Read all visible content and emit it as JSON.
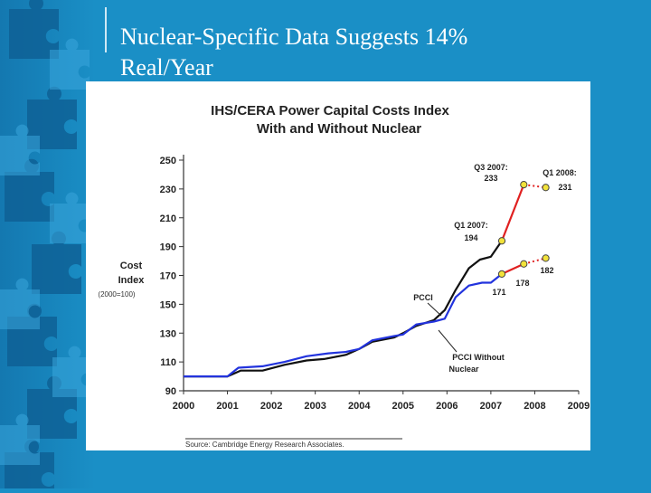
{
  "slide": {
    "title_line1": "Nuclear-Specific Data Suggests 14%",
    "title_line2": "Real/Year"
  },
  "chart_data": {
    "type": "line",
    "title": "IHS/CERA Power Capital Costs Index",
    "subtitle": "With and Without Nuclear",
    "ylabel_line1": "Cost",
    "ylabel_line2": "Index",
    "ylabel_note": "(2000=100)",
    "xlim": [
      2000,
      2009
    ],
    "ylim": [
      90,
      250
    ],
    "xticks": [
      "2000",
      "2001",
      "2002",
      "2003",
      "2004",
      "2005",
      "2006",
      "2007",
      "2008",
      "2009"
    ],
    "yticks": [
      "90",
      "110",
      "130",
      "150",
      "170",
      "190",
      "210",
      "230",
      "250"
    ],
    "series": [
      {
        "name": "PCCI",
        "color": "#111111",
        "points": [
          [
            2000,
            100
          ],
          [
            2001,
            100
          ],
          [
            2001.3,
            104
          ],
          [
            2001.8,
            104
          ],
          [
            2002.3,
            108
          ],
          [
            2002.8,
            111
          ],
          [
            2003.2,
            112
          ],
          [
            2003.7,
            115
          ],
          [
            2004,
            119
          ],
          [
            2004.3,
            124
          ],
          [
            2004.8,
            127
          ],
          [
            2005,
            130
          ],
          [
            2005.3,
            135
          ],
          [
            2005.7,
            139
          ],
          [
            2005.95,
            146
          ],
          [
            2006.2,
            160
          ],
          [
            2006.5,
            175
          ],
          [
            2006.75,
            181
          ],
          [
            2007,
            183
          ],
          [
            2007.25,
            194
          ]
        ]
      },
      {
        "name": "PCCI Without Nuclear",
        "color": "#2233dd",
        "points": [
          [
            2000,
            100
          ],
          [
            2001,
            100
          ],
          [
            2001.25,
            106
          ],
          [
            2001.8,
            107
          ],
          [
            2002.3,
            110
          ],
          [
            2002.8,
            114
          ],
          [
            2003.3,
            116
          ],
          [
            2003.7,
            117
          ],
          [
            2004,
            119
          ],
          [
            2004.3,
            125
          ],
          [
            2004.8,
            128
          ],
          [
            2005,
            129
          ],
          [
            2005.3,
            136
          ],
          [
            2005.7,
            138
          ],
          [
            2005.95,
            140
          ],
          [
            2006.2,
            155
          ],
          [
            2006.5,
            163
          ],
          [
            2006.8,
            165
          ],
          [
            2007,
            165
          ],
          [
            2007.25,
            171
          ]
        ]
      }
    ],
    "extensions": [
      {
        "color": "#e02020",
        "points": [
          [
            2007.25,
            194
          ],
          [
            2007.75,
            233
          ]
        ],
        "dotted_to": [
          2008.25,
          231
        ]
      },
      {
        "color": "#e02020",
        "points": [
          [
            2007.25,
            171
          ],
          [
            2007.75,
            178
          ]
        ],
        "dotted_to": [
          2008.25,
          182
        ]
      }
    ],
    "markers": [
      [
        2007.25,
        194
      ],
      [
        2007.75,
        233
      ],
      [
        2008.25,
        231
      ],
      [
        2007.25,
        171
      ],
      [
        2007.75,
        178
      ],
      [
        2008.25,
        182
      ]
    ],
    "annotations": {
      "q3_2007_line1": "Q3 2007:",
      "q3_2007_line2": "233",
      "q1_2008_line1": "Q1 2008:",
      "q1_2008_line2": "231",
      "q1_2007_line1": "Q1 2007:",
      "q1_2007_line2": "194",
      "v178": "178",
      "v182": "182",
      "v171": "171",
      "pcci": "PCCI",
      "pcci_wo_line1": "PCCI Without",
      "pcci_wo_line2": "Nuclear"
    },
    "source": "Source: Cambridge Energy Research Associates.",
    "marker_color": "#f2e23a"
  }
}
